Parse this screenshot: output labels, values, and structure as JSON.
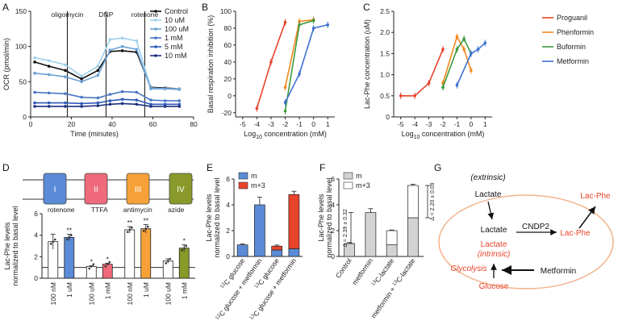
{
  "chart_data": [
    {
      "panel": "A",
      "type": "line",
      "xlabel": "Time (minutes)",
      "ylabel": "OCR (pmol/min)",
      "xlim": [
        0,
        80
      ],
      "ylim": [
        0,
        150
      ],
      "xticks": [
        0,
        20,
        40,
        60,
        80
      ],
      "yticks": [
        0,
        50,
        100,
        150
      ],
      "vlines": [
        {
          "x": 18,
          "label": "oligomycin"
        },
        {
          "x": 37,
          "label": "DNP"
        },
        {
          "x": 56,
          "label": "rotenone"
        }
      ],
      "x": [
        2,
        9,
        17,
        25,
        33,
        39,
        45,
        52,
        59,
        66,
        73
      ],
      "series": [
        {
          "name": "Control",
          "color": "#111111",
          "values": [
            78,
            72,
            66,
            54,
            66,
            93,
            94,
            92,
            42,
            41,
            40
          ]
        },
        {
          "name": "10 uM",
          "color": "#9cd0ea",
          "values": [
            84,
            80,
            74,
            58,
            72,
            110,
            112,
            108,
            41,
            40,
            40
          ]
        },
        {
          "name": "100 uM",
          "color": "#6aa1d6",
          "values": [
            62,
            60,
            57,
            50,
            59,
            95,
            100,
            96,
            40,
            40,
            39
          ]
        },
        {
          "name": "1 mM",
          "color": "#4a77c5",
          "values": [
            35,
            34,
            33,
            28,
            27,
            32,
            36,
            35,
            24,
            23,
            23
          ]
        },
        {
          "name": "5 mM",
          "color": "#2e58b8",
          "values": [
            20,
            20,
            20,
            19,
            20,
            23,
            25,
            24,
            18,
            18,
            18
          ]
        },
        {
          "name": "10 mM",
          "color": "#1c2f80",
          "values": [
            15,
            15,
            15,
            15,
            16,
            18,
            19,
            18,
            15,
            15,
            15
          ]
        }
      ]
    },
    {
      "panel": "B",
      "type": "line",
      "xlabel": "Log",
      "xlabel_sub": "10",
      "xlabel_rest": " concentration (mM)",
      "ylabel": "Basal respiration inhibition (%)",
      "xlim": [
        -5.5,
        1.5
      ],
      "ylim": [
        -25,
        100
      ],
      "xticks": [
        -5,
        -4,
        -3,
        -2,
        -1,
        0,
        1
      ],
      "yticks": [
        -20,
        0,
        20,
        40,
        60,
        80,
        100
      ],
      "series": [
        {
          "name": "Proguanil",
          "color": "#e8432b",
          "x": [
            -4,
            -3,
            -2
          ],
          "values": [
            -15,
            40,
            87
          ]
        },
        {
          "name": "Phenformin",
          "color": "#f2891e",
          "x": [
            -2,
            -1,
            0
          ],
          "values": [
            10,
            88,
            90
          ]
        },
        {
          "name": "Buformin",
          "color": "#3d9a3f",
          "x": [
            -2,
            -1,
            0
          ],
          "values": [
            -18,
            84,
            89
          ]
        },
        {
          "name": "Metformin",
          "color": "#3d6fd1",
          "x": [
            -2,
            -1,
            0,
            1
          ],
          "values": [
            -8,
            26,
            80,
            84
          ]
        }
      ]
    },
    {
      "panel": "C",
      "type": "line",
      "xlabel": "Log",
      "xlabel_sub": "10",
      "xlabel_rest": " concentration (mM)",
      "ylabel": "Lac-Phe concentration (uM)",
      "xlim": [
        -5.5,
        1.5
      ],
      "ylim": [
        0,
        2.5
      ],
      "xticks": [
        -5,
        -4,
        -3,
        -2,
        -1,
        0,
        1
      ],
      "yticks": [
        0,
        0.5,
        1.0,
        1.5,
        2.0,
        2.5
      ],
      "ytick_labels": [
        "0",
        "0.5",
        "1.0",
        "1.5",
        "2.0",
        "2.5"
      ],
      "series": [
        {
          "name": "Proguanil",
          "color": "#e8432b",
          "x": [
            -5,
            -4,
            -3,
            -2
          ],
          "values": [
            0.5,
            0.5,
            0.8,
            1.6
          ]
        },
        {
          "name": "Phenformin",
          "color": "#f2891e",
          "x": [
            -2,
            -1,
            -0.5,
            0
          ],
          "values": [
            0.8,
            1.9,
            1.6,
            1.1
          ]
        },
        {
          "name": "Buformin",
          "color": "#3d9a3f",
          "x": [
            -2,
            -1,
            -0.5,
            0
          ],
          "values": [
            0.7,
            1.6,
            1.85,
            1.5
          ]
        },
        {
          "name": "Metformin",
          "color": "#3d6fd1",
          "x": [
            -1,
            0,
            0.5,
            1
          ],
          "values": [
            0.75,
            1.5,
            1.6,
            1.75
          ]
        }
      ]
    },
    {
      "panel": "D",
      "type": "bar",
      "ylabel": "Lac-Phe levels normalized to basal level",
      "ylim": [
        0,
        6
      ],
      "yticks": [
        0,
        2,
        4,
        6
      ],
      "complexes": [
        "I",
        "II",
        "III",
        "IV"
      ],
      "complex_colors": [
        "#5b8bd6",
        "#ef6a7a",
        "#f7a13a",
        "#8a9a2a"
      ],
      "groups": [
        {
          "name": "rotenone",
          "categories": [
            "100 nM",
            "1 uM"
          ],
          "values": [
            3.4,
            3.8
          ],
          "errors": [
            0.7,
            0.3
          ],
          "colors": [
            "#ffffff",
            "#5b8bd6"
          ],
          "stars": [
            "",
            "**"
          ]
        },
        {
          "name": "TTFA",
          "categories": [
            "100 uM",
            "1 mM"
          ],
          "values": [
            1.1,
            1.3
          ],
          "errors": [
            0.05,
            0.1
          ],
          "colors": [
            "#ffffff",
            "#ef6a7a"
          ],
          "stars": [
            "*",
            "*"
          ]
        },
        {
          "name": "antimycin",
          "categories": [
            "100 nM",
            "1 uM"
          ],
          "values": [
            4.5,
            4.6
          ],
          "errors": [
            0.3,
            0.4
          ],
          "colors": [
            "#ffffff",
            "#f7a13a"
          ],
          "stars": [
            "**",
            "**"
          ]
        },
        {
          "name": "azide",
          "categories": [
            "100 uM",
            "1 mM"
          ],
          "values": [
            1.6,
            2.8
          ],
          "errors": [
            0.2,
            0.3
          ],
          "colors": [
            "#ffffff",
            "#8a9a2a"
          ],
          "stars": [
            "",
            "*"
          ]
        }
      ]
    },
    {
      "panel": "E",
      "type": "bar",
      "stacked": true,
      "ylabel": "Lac-Phe levels normalized to basal level",
      "ylim": [
        0,
        6
      ],
      "yticks": [
        0,
        2,
        4,
        6
      ],
      "categories": [
        "12C glucose",
        "12C glucose + metformin",
        "13C glucose",
        "13C glucose + metformin"
      ],
      "category_parts": [
        [
          "12",
          "C glucose"
        ],
        [
          "12",
          "C glucose + metformin"
        ],
        [
          "13",
          "C glucose"
        ],
        [
          "13",
          "C glucose + metformin"
        ]
      ],
      "series": [
        {
          "name": "m",
          "color": "#5b8bd6",
          "values": [
            0.9,
            4.0,
            0.5,
            0.6
          ]
        },
        {
          "name": "m+3",
          "color": "#e8432b",
          "values": [
            0,
            0,
            0.3,
            4.2
          ]
        }
      ],
      "errors": [
        0.08,
        0.6,
        0.08,
        0.25
      ]
    },
    {
      "panel": "F",
      "type": "bar",
      "stacked": true,
      "ylabel": "Lac-Phe levels normalized to basal level",
      "ylim": [
        0,
        6
      ],
      "yticks": [
        0,
        2,
        4,
        6
      ],
      "categories": [
        "Control",
        "metformin",
        "13C-lactate",
        "metformin + 13C-lactate"
      ],
      "category_parts": [
        [
          "",
          "Control"
        ],
        [
          "",
          "metformin"
        ],
        [
          "13",
          "C-lactate"
        ],
        [
          "metformin + ",
          "13",
          "C-lactate"
        ]
      ],
      "series": [
        {
          "name": "m",
          "color": "#d3d3d3",
          "values": [
            1.0,
            3.4,
            0.9,
            3.0
          ]
        },
        {
          "name": "m+3",
          "color": "#ffffff",
          "values": [
            0,
            0,
            1.1,
            2.5
          ]
        }
      ],
      "errors": [
        0.08,
        0.3,
        0.05,
        0.1
      ],
      "annotations": [
        "Δ = 2.39 ± 0.32",
        "Δ = 2.20 ± 0.09"
      ]
    }
  ],
  "panel_letters": [
    "A",
    "B",
    "C",
    "D",
    "E",
    "F",
    "G"
  ],
  "diagram": {
    "extrinsic": "(extrinsic)",
    "lactate_top": "Lactate",
    "lactate_mid": "Lactate",
    "enzyme": "CNDP2",
    "lacphe_in": "Lac-Phe",
    "lacphe_out": "Lac-Phe",
    "lactate_intrinsic": "Lactate",
    "intrinsic": "(intrinsic)",
    "glycolysis": "Glycolysis",
    "metformin": "Metformin",
    "glucose": "Glucose",
    "red": "#e8432b",
    "oval": "#f2b38c"
  }
}
